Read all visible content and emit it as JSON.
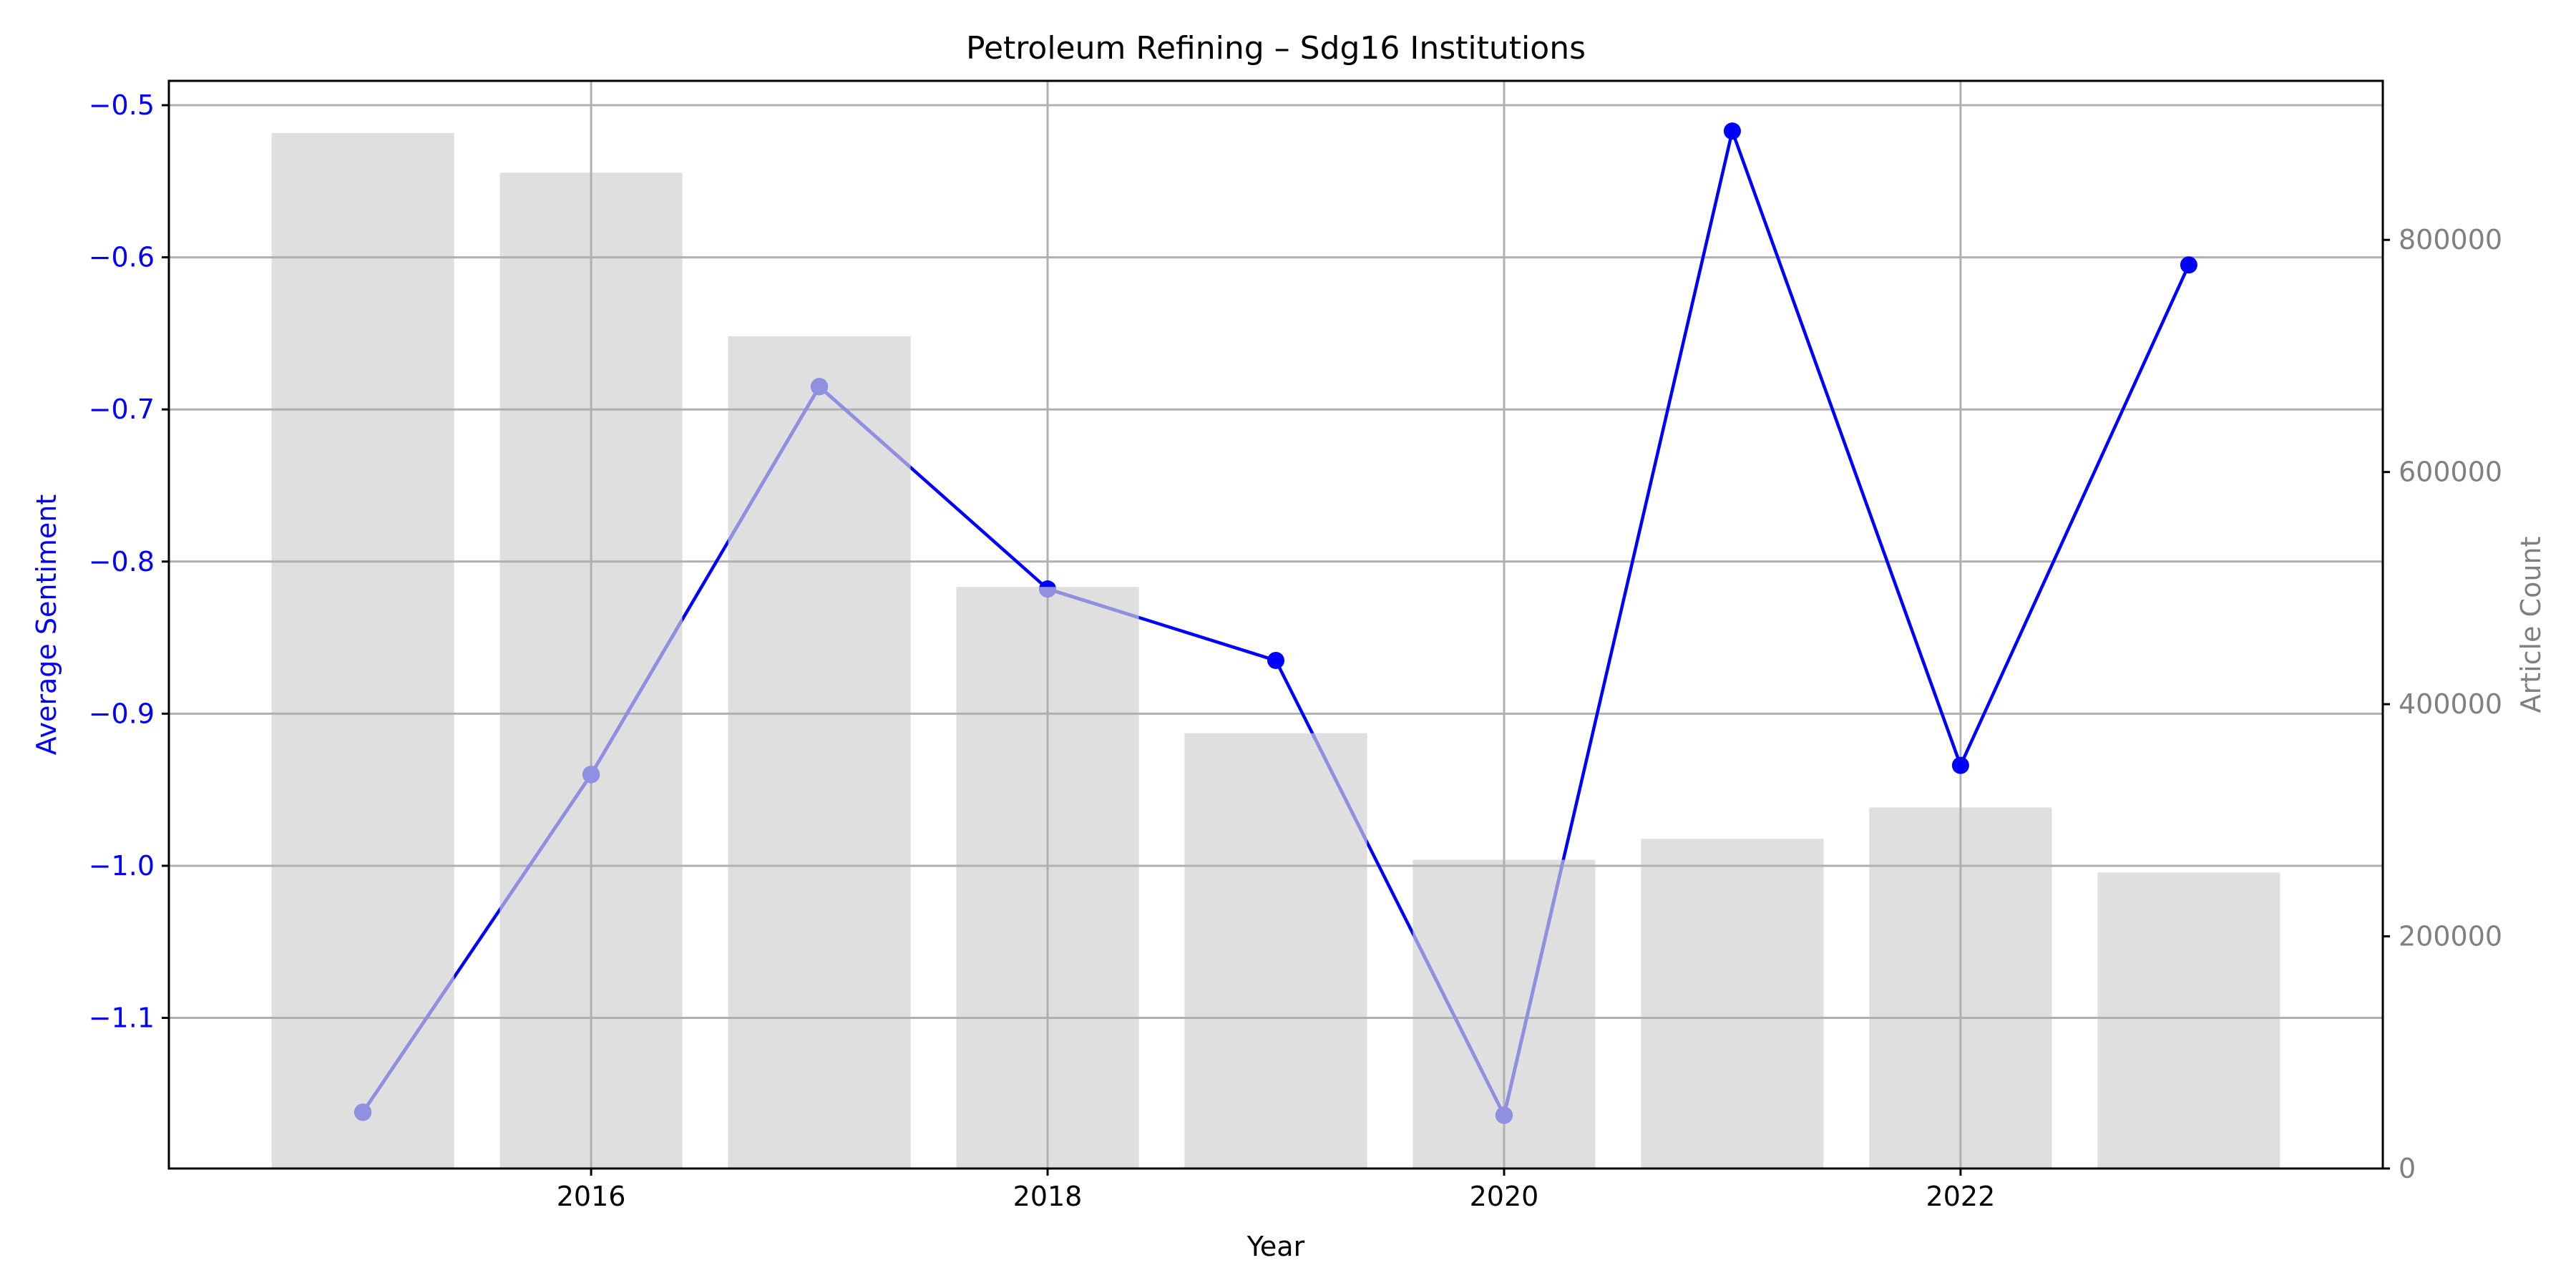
{
  "chart_data": {
    "type": "bar",
    "title": "Petroleum Refining – Sdg16 Institutions",
    "xlabel": "Year",
    "ylabel_left": "Average Sentiment",
    "ylabel_right": "Article Count",
    "x_ticks": [
      "2016",
      "2018",
      "2020",
      "2022"
    ],
    "y_left_ticks": [
      "−0.5",
      "−0.6",
      "−0.7",
      "−0.8",
      "−0.9",
      "−1.0",
      "−1.1"
    ],
    "y_right_ticks": [
      "0",
      "200000",
      "400000",
      "600000",
      "800000"
    ],
    "xlim": [
      2014.15,
      2023.85
    ],
    "ylim_left": [
      -1.199,
      -0.484
    ],
    "ylim_right": [
      0,
      937000
    ],
    "grid": true,
    "series": [
      {
        "kind": "bar",
        "axis": "right",
        "color": "#dfdfdf",
        "x": [
          2015,
          2016,
          2017,
          2018,
          2019,
          2020,
          2021,
          2022,
          2023
        ],
        "values": [
          892000,
          858000,
          717000,
          501000,
          375000,
          266000,
          284000,
          311000,
          255000
        ]
      },
      {
        "kind": "line",
        "axis": "left",
        "color": "#0000ff",
        "x": [
          2015,
          2016,
          2017,
          2018,
          2019,
          2020,
          2021,
          2022,
          2023
        ],
        "values": [
          -1.162,
          -0.94,
          -0.685,
          -0.818,
          -0.865,
          -1.164,
          -0.517,
          -0.934,
          -0.605
        ]
      }
    ],
    "colors": {
      "left_axis": "#0000ff",
      "right_axis": "#808080",
      "grid": "#b0b0b0",
      "faded_line": "#9090e0"
    }
  }
}
